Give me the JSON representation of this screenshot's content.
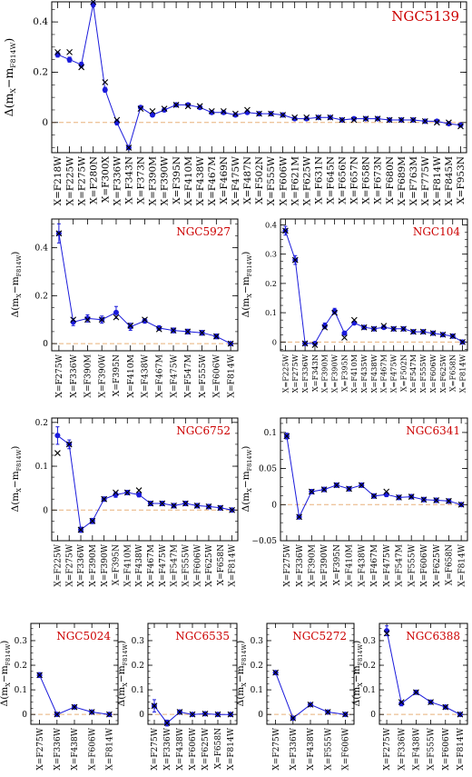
{
  "figure": {
    "ylabel_main": "Δ(m",
    "ylabel_sub_x": "X",
    "ylabel_minus": "−m",
    "ylabel_sub_f": "F814W",
    "ylabel_close": ")",
    "colors": {
      "line": "#1a1adb",
      "zero_line": "#e8b07a",
      "title": "#cc0000",
      "cross": "#000000"
    }
  },
  "chart_data": [
    {
      "type": "line",
      "title": "NGC5139",
      "categories": [
        "X=F218W",
        "X=F225W",
        "X=F275W",
        "X=F280N",
        "X=F300X",
        "X=F336W",
        "X=F343N",
        "X=F373N",
        "X=F390M",
        "X=F390W",
        "X=F395N",
        "X=F410M",
        "X=F438W",
        "X=F467M",
        "X=F469N",
        "X=F475W",
        "X=F487N",
        "X=F502N",
        "X=F555W",
        "X=F606W",
        "X=F621M",
        "X=F625W",
        "X=F631N",
        "X=F645N",
        "X=F656N",
        "X=F657N",
        "X=F658N",
        "X=F673N",
        "X=F680N",
        "X=F689M",
        "X=F763M",
        "X=F775W",
        "X=F814W",
        "X=F845M",
        "X=F953N"
      ],
      "values": [
        0.27,
        0.25,
        0.23,
        0.47,
        0.13,
        0.0,
        -0.1,
        0.06,
        0.03,
        0.05,
        0.07,
        0.07,
        0.06,
        0.04,
        0.04,
        0.03,
        0.04,
        0.035,
        0.035,
        0.03,
        0.015,
        0.015,
        0.02,
        0.02,
        0.01,
        0.015,
        0.015,
        0.015,
        0.01,
        0.01,
        0.01,
        0.005,
        0.005,
        -0.005,
        -0.01
      ],
      "errors": [
        0.01,
        0.01,
        0.01,
        0.01,
        0.01,
        0.01,
        0.005,
        0.005,
        0.005,
        0.005,
        0.005,
        0.005,
        0.005,
        0.005,
        0.005,
        0.005,
        0.005,
        0.005,
        0.005,
        0.005,
        0.005,
        0.005,
        0.005,
        0.005,
        0.005,
        0.005,
        0.005,
        0.005,
        0.005,
        0.005,
        0.005,
        0.005,
        0.005,
        0.005,
        0.005
      ],
      "crosses": [
        0.28,
        0.28,
        0.22,
        0.48,
        0.16,
        0.01,
        -0.1,
        0.055,
        0.045,
        0.055,
        0.07,
        0.065,
        0.065,
        0.045,
        0.045,
        0.035,
        0.05,
        0.035,
        0.035,
        0.03,
        0.02,
        0.02,
        0.02,
        0.02,
        0.01,
        0.01,
        0.015,
        0.015,
        0.01,
        0.01,
        0.01,
        0.005,
        0.0,
        0.0,
        -0.015
      ],
      "ylim": [
        -0.12,
        0.48
      ],
      "yticks": [
        0,
        0.2,
        0.4
      ],
      "ytick_labels": [
        "0",
        "0.2",
        "0.4"
      ]
    },
    {
      "type": "line",
      "title": "NGC5927",
      "categories": [
        "X=F275W",
        "X=F336W",
        "X=F390M",
        "X=F390W",
        "X=F395N",
        "X=F410M",
        "X=F438W",
        "X=F467M",
        "X=F475W",
        "X=F547M",
        "X=F555W",
        "X=F606W",
        "X=F814W"
      ],
      "values": [
        0.46,
        0.09,
        0.105,
        0.1,
        0.13,
        0.07,
        0.095,
        0.065,
        0.055,
        0.05,
        0.045,
        0.03,
        0.0
      ],
      "errors": [
        0.04,
        0.015,
        0.015,
        0.015,
        0.025,
        0.015,
        0.01,
        0.01,
        0.01,
        0.01,
        0.01,
        0.01,
        0.003
      ],
      "crosses": [
        0.46,
        0.1,
        0.1,
        0.1,
        0.11,
        0.075,
        0.1,
        0.06,
        0.055,
        0.05,
        0.045,
        0.03,
        0.0
      ],
      "ylim": [
        -0.03,
        0.52
      ],
      "yticks": [
        0,
        0.2,
        0.4
      ],
      "ytick_labels": [
        "0",
        "0.2",
        "0.4"
      ]
    },
    {
      "type": "line",
      "title": "NGC104",
      "categories": [
        "X=F225W",
        "X=F275W",
        "X=F336W",
        "X=F343N",
        "X=F390M",
        "X=F390W",
        "X=F395N",
        "X=F410M",
        "X=F435W",
        "X=F438W",
        "X=F467M",
        "X=F475W",
        "X=F502N",
        "X=F547M",
        "X=F555W",
        "X=F606W",
        "X=F625W",
        "X=F658N",
        "X=F814W"
      ],
      "values": [
        0.38,
        0.28,
        -0.005,
        -0.005,
        0.055,
        0.105,
        0.03,
        0.065,
        0.05,
        0.045,
        0.05,
        0.045,
        0.045,
        0.035,
        0.035,
        0.03,
        0.025,
        0.02,
        0.0
      ],
      "errors": [
        0.015,
        0.015,
        0.005,
        0.005,
        0.01,
        0.01,
        0.005,
        0.005,
        0.005,
        0.005,
        0.005,
        0.005,
        0.005,
        0.005,
        0.005,
        0.005,
        0.005,
        0.005,
        0.003
      ],
      "crosses": [
        0.38,
        0.28,
        -0.005,
        -0.01,
        0.05,
        0.1,
        0.015,
        0.075,
        0.05,
        0.045,
        0.055,
        0.045,
        0.045,
        0.035,
        0.035,
        0.03,
        0.025,
        0.02,
        0.0
      ],
      "ylim": [
        -0.03,
        0.42
      ],
      "yticks": [
        0,
        0.1,
        0.2,
        0.3,
        0.4
      ],
      "ytick_labels": [
        "0",
        "0.1",
        "0.2",
        "0.3",
        "0.4"
      ]
    },
    {
      "type": "line",
      "title": "NGC6752",
      "categories": [
        "X=F225W",
        "X=F275W",
        "X=F336W",
        "X=F390M",
        "X=F390W",
        "X=F395N",
        "X=F410M",
        "X=F438W",
        "X=F467M",
        "X=F475W",
        "X=F547M",
        "X=F555W",
        "X=F606W",
        "X=F625W",
        "X=F658N",
        "X=F814W"
      ],
      "values": [
        0.17,
        0.15,
        -0.045,
        -0.025,
        0.025,
        0.035,
        0.04,
        0.035,
        0.015,
        0.015,
        0.01,
        0.015,
        0.01,
        0.008,
        0.005,
        0.0
      ],
      "errors": [
        0.02,
        0.01,
        0.006,
        0.006,
        0.005,
        0.006,
        0.005,
        0.005,
        0.005,
        0.005,
        0.005,
        0.005,
        0.005,
        0.005,
        0.005,
        0.003
      ],
      "crosses": [
        0.13,
        0.15,
        -0.045,
        -0.025,
        0.025,
        0.04,
        0.04,
        0.045,
        0.015,
        0.015,
        0.01,
        0.015,
        0.01,
        0.008,
        0.005,
        0.0
      ],
      "ylim": [
        -0.07,
        0.21
      ],
      "yticks": [
        0,
        0.1,
        0.2
      ],
      "ytick_labels": [
        "0",
        "0.1",
        "0.2"
      ]
    },
    {
      "type": "line",
      "title": "NGC6341",
      "categories": [
        "X=F275W",
        "X=F336W",
        "X=F390M",
        "X=F390W",
        "X=F395N",
        "X=F410M",
        "X=F438W",
        "X=F467M",
        "X=F475W",
        "X=F547M",
        "X=F555W",
        "X=F606W",
        "X=F625W",
        "X=F658N",
        "X=F814W"
      ],
      "values": [
        0.095,
        -0.017,
        0.018,
        0.021,
        0.027,
        0.022,
        0.027,
        0.012,
        0.014,
        0.01,
        0.011,
        0.007,
        0.006,
        0.005,
        0.0
      ],
      "errors": [
        0.004,
        0.003,
        0.003,
        0.003,
        0.003,
        0.003,
        0.003,
        0.003,
        0.003,
        0.003,
        0.003,
        0.003,
        0.003,
        0.003,
        0.002
      ],
      "crosses": [
        0.095,
        -0.017,
        0.018,
        0.021,
        0.027,
        0.022,
        0.027,
        0.012,
        0.018,
        0.01,
        0.011,
        0.007,
        0.006,
        0.005,
        0.0
      ],
      "ylim": [
        -0.05,
        0.12
      ],
      "yticks": [
        -0.05,
        0,
        0.05,
        0.1
      ],
      "ytick_labels": [
        "−0.05",
        "0",
        "0.05",
        "0.1"
      ]
    },
    {
      "type": "line",
      "title": "NGC5024",
      "categories": [
        "X=F275W",
        "X=F336W",
        "X=F438W",
        "X=F606W",
        "X=F814W"
      ],
      "values": [
        0.16,
        0.0,
        0.03,
        0.01,
        0.0
      ],
      "errors": [
        0.01,
        0.004,
        0.004,
        0.003,
        0.002
      ],
      "crosses": [
        0.16,
        0.0,
        0.03,
        0.01,
        0.0
      ],
      "ylim": [
        -0.04,
        0.37
      ],
      "yticks": [
        0,
        0.1,
        0.2,
        0.3
      ],
      "ytick_labels": [
        "0",
        "0.1",
        "0.2",
        "0.3"
      ]
    },
    {
      "type": "line",
      "title": "NGC6535",
      "categories": [
        "X=F275W",
        "X=F336W",
        "X=F438W",
        "X=F606W",
        "X=F625W",
        "X=F658N",
        "X=F814W"
      ],
      "values": [
        0.035,
        -0.035,
        0.01,
        0.0,
        0.003,
        0.0,
        0.0
      ],
      "errors": [
        0.025,
        0.012,
        0.008,
        0.005,
        0.005,
        0.005,
        0.003
      ],
      "crosses": [
        0.035,
        -0.035,
        0.01,
        0.0,
        0.003,
        0.0,
        0.0
      ],
      "ylim": [
        -0.04,
        0.37
      ],
      "yticks": [
        0,
        0.1,
        0.2,
        0.3
      ],
      "ytick_labels": [
        "0",
        "0.1",
        "0.2",
        "0.3"
      ]
    },
    {
      "type": "line",
      "title": "NGC5272",
      "categories": [
        "X=F275W",
        "X=F336W",
        "X=F438W",
        "X=F555W",
        "X=F606W"
      ],
      "values": [
        0.17,
        -0.015,
        0.04,
        0.01,
        0.0
      ],
      "errors": [
        0.006,
        0.003,
        0.003,
        0.003,
        0.002
      ],
      "crosses": [
        0.17,
        -0.015,
        0.04,
        0.01,
        0.0
      ],
      "ylim": [
        -0.04,
        0.37
      ],
      "yticks": [
        0,
        0.1,
        0.2,
        0.3
      ],
      "ytick_labels": [
        "0",
        "0.1",
        "0.2",
        "0.3"
      ]
    },
    {
      "type": "line",
      "title": "NGC6388",
      "categories": [
        "X=F275W",
        "X=F336W",
        "X=F438W",
        "X=F555W",
        "X=F606W",
        "X=F814W"
      ],
      "values": [
        0.34,
        0.045,
        0.09,
        0.05,
        0.03,
        0.0
      ],
      "errors": [
        0.02,
        0.01,
        0.008,
        0.005,
        0.005,
        0.003
      ],
      "crosses": [
        0.33,
        0.05,
        0.09,
        0.05,
        0.03,
        0.0
      ],
      "ylim": [
        -0.04,
        0.37
      ],
      "yticks": [
        0,
        0.1,
        0.2,
        0.3
      ],
      "ytick_labels": [
        "0",
        "0.1",
        "0.2",
        "0.3"
      ]
    }
  ]
}
